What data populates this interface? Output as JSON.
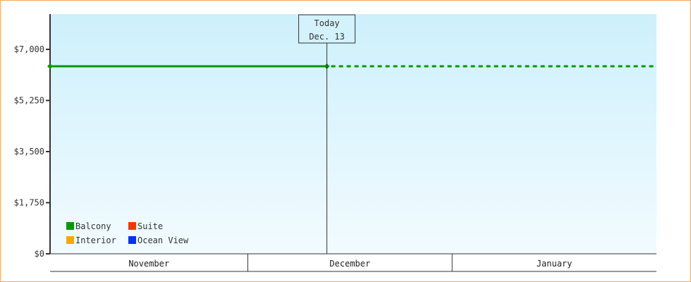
{
  "chart_data": {
    "type": "line",
    "title": "",
    "xlabel": "",
    "ylabel": "",
    "ylim": [
      0,
      8000
    ],
    "y_ticks": [
      "$0",
      "$1,750",
      "$3,500",
      "$5,250",
      "$7,000"
    ],
    "y_tick_values": [
      0,
      1750,
      3500,
      5250,
      7000
    ],
    "x_categories": [
      "November",
      "December",
      "January"
    ],
    "today_marker": {
      "line1": "Today",
      "line2": "Dec. 13"
    },
    "series": [
      {
        "name": "Balcony",
        "color": "#009900",
        "points": [
          {
            "x": "Nov. 1",
            "y": 6420
          },
          {
            "x": "Dec. 13",
            "y": 6420
          }
        ],
        "projected": [
          {
            "x": "Dec. 13",
            "y": 6420
          },
          {
            "x": "Jan. 31",
            "y": 6420
          }
        ]
      },
      {
        "name": "Suite",
        "color": "#ff3300",
        "points": []
      },
      {
        "name": "Interior",
        "color": "#ffa500",
        "points": []
      },
      {
        "name": "Ocean View",
        "color": "#0033ff",
        "points": []
      }
    ],
    "legend_placement": "bottom-left",
    "grid": false,
    "background_gradient": [
      "#cdf0fc",
      "#f2fbff"
    ]
  }
}
